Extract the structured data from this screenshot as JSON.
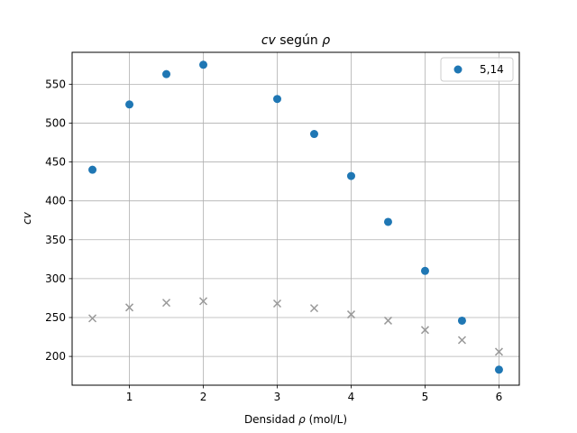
{
  "chart_data": {
    "type": "scatter",
    "title_main": "cv",
    "title_mid": " según ",
    "title_rho": "ρ",
    "xlabel_prefix": "Densidad ",
    "xlabel_rho": "ρ",
    "xlabel_suffix": " (mol/L)",
    "ylabel": "cv",
    "xlim": [
      0.225,
      6.275
    ],
    "ylim": [
      163,
      591
    ],
    "xticks": [
      1,
      2,
      3,
      4,
      5,
      6
    ],
    "yticks": [
      200,
      250,
      300,
      350,
      400,
      450,
      500,
      550
    ],
    "grid": true,
    "legend_position": "upper right",
    "legend": [
      {
        "label": "5,14"
      }
    ],
    "series": [
      {
        "name": "5,14",
        "marker": "circle",
        "color": "#1f77b4",
        "x": [
          0.5,
          1.0,
          1.5,
          2.0,
          3.0,
          3.5,
          4.0,
          4.5,
          5.0,
          5.5,
          6.0
        ],
        "y": [
          440,
          524,
          563,
          575,
          531,
          486,
          432,
          373,
          310,
          246,
          183
        ]
      },
      {
        "marker": "x",
        "color": "#999999",
        "x": [
          0.5,
          1.0,
          1.5,
          2.0,
          3.0,
          3.5,
          4.0,
          4.5,
          5.0,
          5.5,
          6.0
        ],
        "y": [
          249,
          263,
          269,
          271,
          268,
          262,
          254,
          246,
          234,
          221,
          206
        ]
      }
    ]
  }
}
